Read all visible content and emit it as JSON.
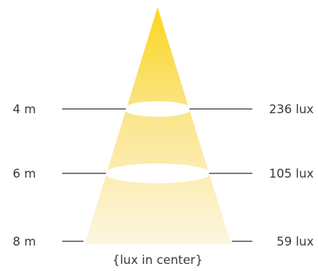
{
  "levels": [
    {
      "distance": "4 m",
      "lux": "236 lux"
    },
    {
      "distance": "6 m",
      "lux": "105 lux"
    },
    {
      "distance": "8 m",
      "lux": "59 lux"
    }
  ],
  "caption": "{lux in center}",
  "colors": {
    "beam_top": "#f9d71c",
    "beam_bottom": "#fdf6e0",
    "guide_line": "#4a4a4a",
    "text": "#3a3a3a"
  }
}
